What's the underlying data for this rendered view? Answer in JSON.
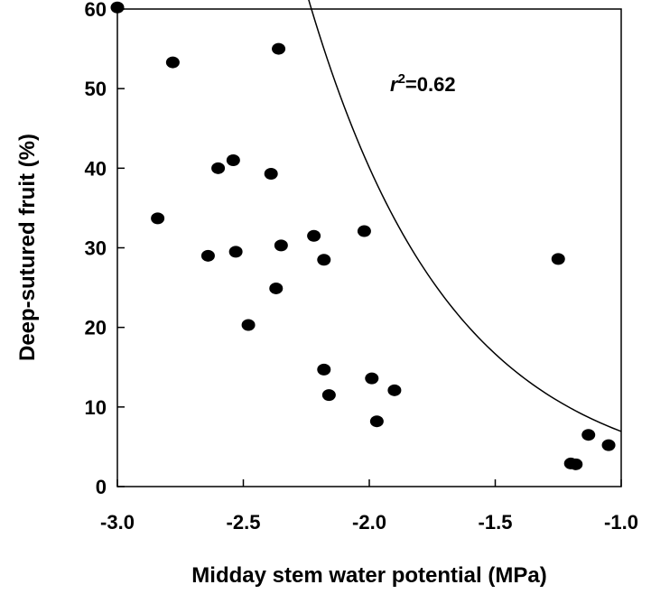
{
  "chart_data": {
    "type": "scatter",
    "xlabel": "Midday stem water potential (MPa)",
    "ylabel": "Deep-sutured fruit (%)",
    "xlim": [
      -3.0,
      -1.0
    ],
    "ylim": [
      0,
      60
    ],
    "xticks": [
      "-3.0",
      "-2.5",
      "-2.0",
      "-1.5",
      "-1.0"
    ],
    "xtick_values": [
      -3.0,
      -2.5,
      -2.0,
      -1.5,
      -1.0
    ],
    "yticks": [
      "0",
      "10",
      "20",
      "30",
      "40",
      "50",
      "60"
    ],
    "ytick_values": [
      0,
      10,
      20,
      30,
      40,
      50,
      60
    ],
    "grid": false,
    "annotation": {
      "r": "r",
      "sup": "2",
      "value": "=0.62"
    },
    "points": [
      {
        "x": -3.0,
        "y": 60.2
      },
      {
        "x": -2.78,
        "y": 53.3
      },
      {
        "x": -2.36,
        "y": 55.0
      },
      {
        "x": -2.84,
        "y": 33.7
      },
      {
        "x": -2.6,
        "y": 40.0
      },
      {
        "x": -2.54,
        "y": 41.0
      },
      {
        "x": -2.39,
        "y": 39.3
      },
      {
        "x": -2.64,
        "y": 29.0
      },
      {
        "x": -2.53,
        "y": 29.5
      },
      {
        "x": -2.35,
        "y": 30.3
      },
      {
        "x": -2.37,
        "y": 24.9
      },
      {
        "x": -2.48,
        "y": 20.3
      },
      {
        "x": -2.22,
        "y": 31.5
      },
      {
        "x": -2.18,
        "y": 28.5
      },
      {
        "x": -2.02,
        "y": 32.1
      },
      {
        "x": -2.18,
        "y": 14.7
      },
      {
        "x": -2.16,
        "y": 11.5
      },
      {
        "x": -1.99,
        "y": 13.6
      },
      {
        "x": -1.9,
        "y": 12.1
      },
      {
        "x": -1.97,
        "y": 8.2
      },
      {
        "x": -1.25,
        "y": 28.6
      },
      {
        "x": -1.2,
        "y": 2.9
      },
      {
        "x": -1.18,
        "y": 2.8
      },
      {
        "x": -1.13,
        "y": 6.5
      },
      {
        "x": -1.05,
        "y": 5.2
      }
    ],
    "fit": {
      "type": "exponential",
      "a": 1.197,
      "b": 1.7556
    }
  }
}
